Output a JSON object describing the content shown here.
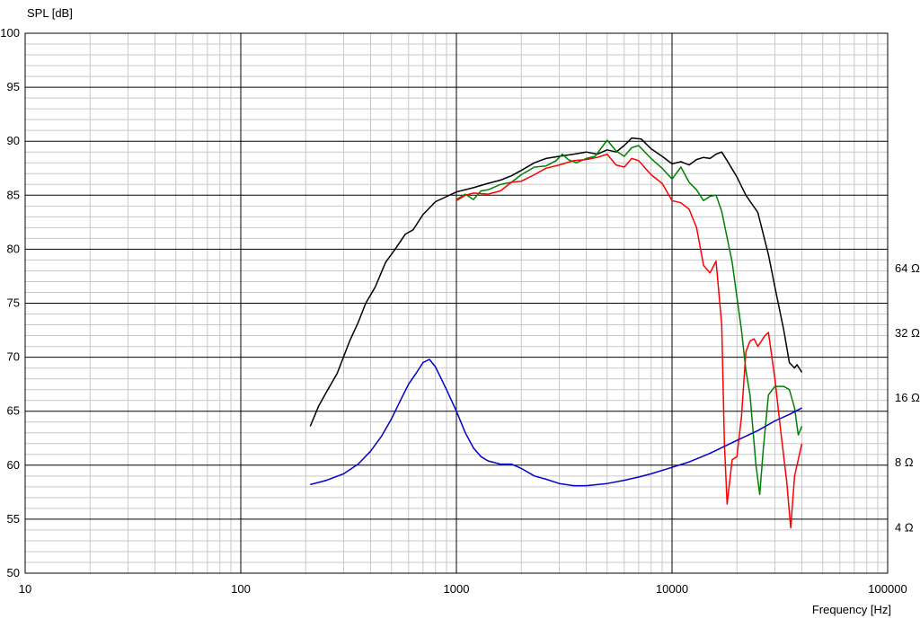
{
  "chart_data": {
    "type": "line",
    "ylabel": "SPL [dB]",
    "xlabel": "Frequency [Hz]",
    "x_scale": "log",
    "xlim": [
      10,
      100000
    ],
    "ylim": [
      50,
      100
    ],
    "grid": true,
    "x_tick_labels": [
      {
        "value": 10,
        "label": "10"
      },
      {
        "value": 100,
        "label": "100"
      },
      {
        "value": 1000,
        "label": "1000"
      },
      {
        "value": 10000,
        "label": "10000"
      },
      {
        "value": 100000,
        "label": "100000"
      }
    ],
    "y_ticks": [
      50,
      55,
      60,
      65,
      70,
      75,
      80,
      85,
      90,
      95,
      100
    ],
    "impedance_axis": {
      "ticks": [
        {
          "spl": 54.3,
          "label": "4 Ω"
        },
        {
          "spl": 60.3,
          "label": "8 Ω"
        },
        {
          "spl": 66.3,
          "label": "16 Ω"
        },
        {
          "spl": 72.3,
          "label": "32 Ω"
        },
        {
          "spl": 78.3,
          "label": "64 Ω"
        }
      ]
    },
    "series": [
      {
        "color": "#000000",
        "points": [
          [
            210,
            63.6
          ],
          [
            230,
            65.5
          ],
          [
            250,
            66.8
          ],
          [
            280,
            68.5
          ],
          [
            320,
            71.5
          ],
          [
            350,
            73.2
          ],
          [
            380,
            75
          ],
          [
            420,
            76.5
          ],
          [
            470,
            78.8
          ],
          [
            520,
            80
          ],
          [
            580,
            81.4
          ],
          [
            630,
            81.8
          ],
          [
            700,
            83.2
          ],
          [
            800,
            84.4
          ],
          [
            1000,
            85.3
          ],
          [
            1200,
            85.7
          ],
          [
            1400,
            86.1
          ],
          [
            1600,
            86.4
          ],
          [
            1800,
            86.8
          ],
          [
            2000,
            87.3
          ],
          [
            2300,
            88
          ],
          [
            2600,
            88.4
          ],
          [
            3000,
            88.6
          ],
          [
            3500,
            88.8
          ],
          [
            4000,
            89
          ],
          [
            4500,
            88.8
          ],
          [
            5000,
            89.2
          ],
          [
            5500,
            89
          ],
          [
            6000,
            89.6
          ],
          [
            6500,
            90.3
          ],
          [
            7200,
            90.2
          ],
          [
            8000,
            89.3
          ],
          [
            9000,
            88.6
          ],
          [
            10000,
            87.9
          ],
          [
            11000,
            88.1
          ],
          [
            12000,
            87.8
          ],
          [
            13000,
            88.3
          ],
          [
            14000,
            88.5
          ],
          [
            15000,
            88.4
          ],
          [
            16000,
            88.8
          ],
          [
            17000,
            89
          ],
          [
            18000,
            88.2
          ],
          [
            20000,
            86.7
          ],
          [
            22000,
            85
          ],
          [
            25000,
            83.4
          ],
          [
            28000,
            79.5
          ],
          [
            30000,
            76.5
          ],
          [
            33000,
            72.5
          ],
          [
            35000,
            69.5
          ],
          [
            37000,
            69
          ],
          [
            38000,
            69.3
          ],
          [
            40000,
            68.6
          ]
        ]
      },
      {
        "color": "#008000",
        "points": [
          [
            1000,
            84.6
          ],
          [
            1100,
            85.1
          ],
          [
            1200,
            84.6
          ],
          [
            1300,
            85.4
          ],
          [
            1400,
            85.5
          ],
          [
            1600,
            86
          ],
          [
            1800,
            86.2
          ],
          [
            2000,
            86.9
          ],
          [
            2300,
            87.6
          ],
          [
            2600,
            87.7
          ],
          [
            2900,
            88.2
          ],
          [
            3100,
            88.8
          ],
          [
            3300,
            88.3
          ],
          [
            3600,
            88
          ],
          [
            4000,
            88.4
          ],
          [
            4400,
            88.6
          ],
          [
            5000,
            90.1
          ],
          [
            5500,
            89.1
          ],
          [
            6000,
            88.6
          ],
          [
            6500,
            89.4
          ],
          [
            7000,
            89.6
          ],
          [
            8000,
            88.4
          ],
          [
            9000,
            87.5
          ],
          [
            10000,
            86.5
          ],
          [
            11000,
            87.6
          ],
          [
            12000,
            86.2
          ],
          [
            13000,
            85.5
          ],
          [
            14000,
            84.5
          ],
          [
            15000,
            84.9
          ],
          [
            16000,
            85
          ],
          [
            17000,
            83.5
          ],
          [
            19000,
            78.8
          ],
          [
            21000,
            72.5
          ],
          [
            22000,
            68.8
          ],
          [
            23000,
            66.5
          ],
          [
            24500,
            60
          ],
          [
            25500,
            57.3
          ],
          [
            26500,
            61.5
          ],
          [
            28000,
            66.5
          ],
          [
            30000,
            67.3
          ],
          [
            33000,
            67.3
          ],
          [
            35000,
            67
          ],
          [
            37000,
            65.3
          ],
          [
            38500,
            62.8
          ],
          [
            40000,
            63.6
          ]
        ]
      },
      {
        "color": "#ff0000",
        "points": [
          [
            1000,
            84.5
          ],
          [
            1100,
            85
          ],
          [
            1200,
            85.2
          ],
          [
            1400,
            85.1
          ],
          [
            1600,
            85.4
          ],
          [
            1800,
            86.2
          ],
          [
            2000,
            86.3
          ],
          [
            2300,
            86.9
          ],
          [
            2600,
            87.5
          ],
          [
            3000,
            87.8
          ],
          [
            3500,
            88.2
          ],
          [
            4000,
            88.3
          ],
          [
            4500,
            88.5
          ],
          [
            5000,
            88.8
          ],
          [
            5500,
            87.8
          ],
          [
            6000,
            87.6
          ],
          [
            6500,
            88.4
          ],
          [
            7000,
            88.2
          ],
          [
            8000,
            86.9
          ],
          [
            9000,
            86.1
          ],
          [
            10000,
            84.5
          ],
          [
            11000,
            84.3
          ],
          [
            12000,
            83.7
          ],
          [
            13000,
            82
          ],
          [
            14000,
            78.5
          ],
          [
            15000,
            77.8
          ],
          [
            16000,
            78.9
          ],
          [
            17000,
            73
          ],
          [
            17500,
            62
          ],
          [
            18000,
            56.4
          ],
          [
            19000,
            60.5
          ],
          [
            20000,
            60.8
          ],
          [
            21000,
            64.5
          ],
          [
            22000,
            70.5
          ],
          [
            23000,
            71.5
          ],
          [
            24000,
            71.7
          ],
          [
            25000,
            71
          ],
          [
            27000,
            72
          ],
          [
            28000,
            72.3
          ],
          [
            30000,
            68
          ],
          [
            32000,
            63
          ],
          [
            34000,
            58.5
          ],
          [
            35500,
            54.2
          ],
          [
            37000,
            59
          ],
          [
            40000,
            62
          ]
        ]
      },
      {
        "color": "#0000c8",
        "points": [
          [
            210,
            58.2
          ],
          [
            250,
            58.6
          ],
          [
            300,
            59.2
          ],
          [
            350,
            60.1
          ],
          [
            400,
            61.3
          ],
          [
            450,
            62.7
          ],
          [
            500,
            64.3
          ],
          [
            550,
            66
          ],
          [
            600,
            67.5
          ],
          [
            650,
            68.5
          ],
          [
            700,
            69.5
          ],
          [
            750,
            69.8
          ],
          [
            800,
            69.1
          ],
          [
            900,
            67
          ],
          [
            1000,
            65
          ],
          [
            1100,
            63
          ],
          [
            1200,
            61.6
          ],
          [
            1300,
            60.8
          ],
          [
            1400,
            60.4
          ],
          [
            1600,
            60.1
          ],
          [
            1800,
            60.1
          ],
          [
            2000,
            59.7
          ],
          [
            2300,
            59
          ],
          [
            2600,
            58.7
          ],
          [
            3000,
            58.3
          ],
          [
            3500,
            58.1
          ],
          [
            4000,
            58.1
          ],
          [
            5000,
            58.3
          ],
          [
            6000,
            58.6
          ],
          [
            7000,
            58.9
          ],
          [
            8000,
            59.2
          ],
          [
            10000,
            59.8
          ],
          [
            12000,
            60.3
          ],
          [
            15000,
            61.1
          ],
          [
            20000,
            62.3
          ],
          [
            25000,
            63.2
          ],
          [
            30000,
            64.1
          ],
          [
            35000,
            64.7
          ],
          [
            40000,
            65.3
          ]
        ]
      }
    ]
  }
}
